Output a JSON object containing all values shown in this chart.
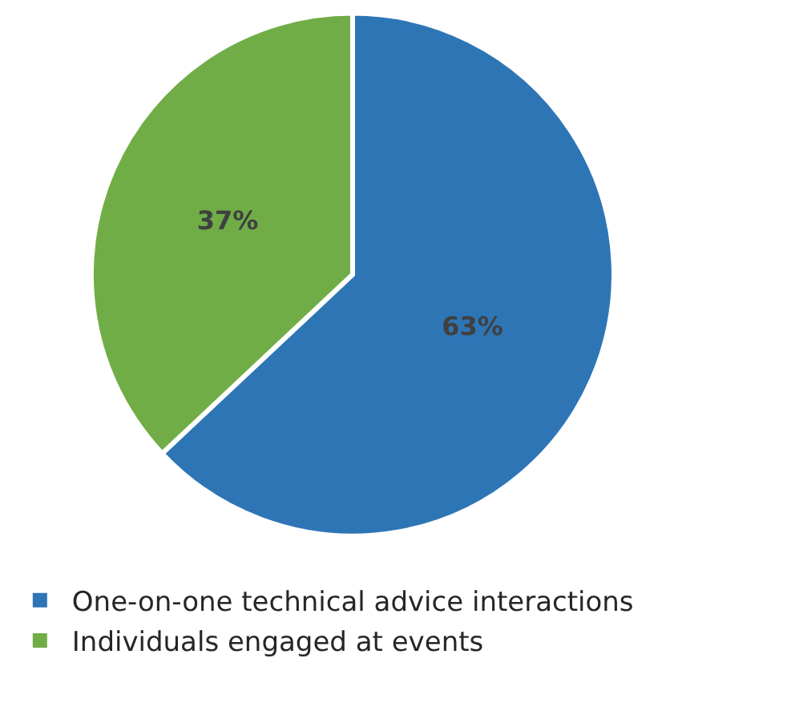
{
  "chart_data": {
    "type": "pie",
    "categories": [
      "One-on-one technical advice interactions",
      "Individuals engaged at events"
    ],
    "values": [
      63,
      37
    ],
    "colors": [
      "#2e75b6",
      "#70ad47"
    ],
    "value_labels": [
      "63%",
      "37%"
    ],
    "legend": "bottom"
  }
}
